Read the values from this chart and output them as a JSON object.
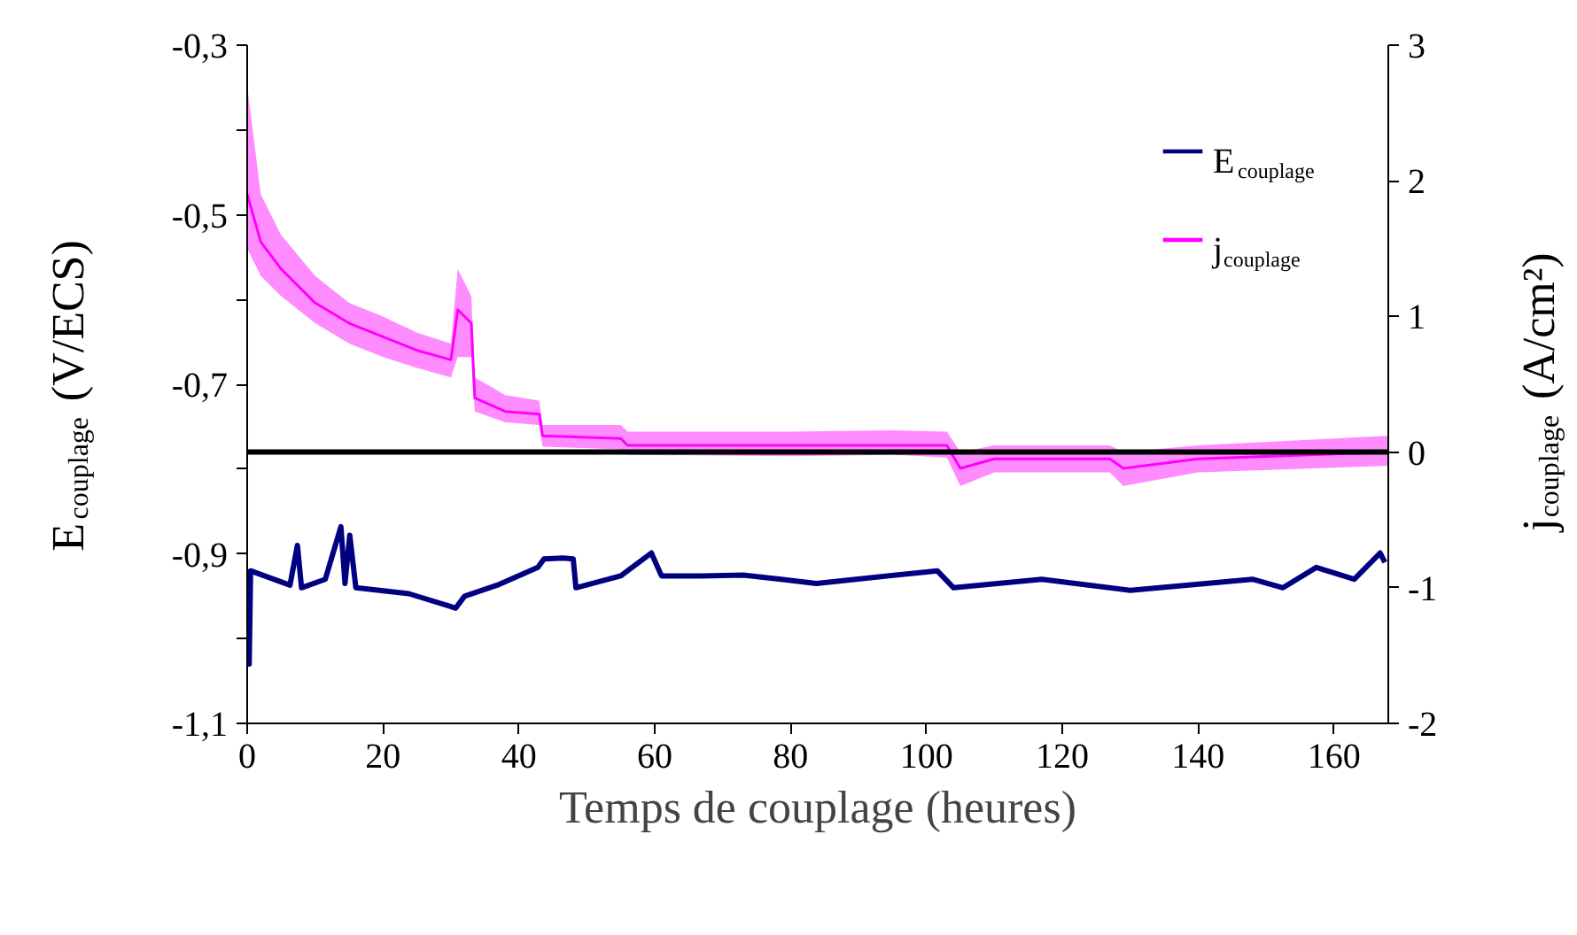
{
  "chart_data": {
    "type": "line",
    "xlabel": "Temps de couplage (heures)",
    "ylabel": "E$_{couplage}$ (V/ECS)",
    "y2label": "j$_{couplage}$ (A/cm²)",
    "xlim": [
      0,
      168
    ],
    "xticks": [
      0,
      20,
      40,
      60,
      80,
      100,
      120,
      140,
      160
    ],
    "ylim": [
      -1.1,
      -0.3
    ],
    "yticks": [
      {
        "value": -0.3,
        "label": "-0,3"
      },
      {
        "value": -0.4,
        "label": null
      },
      {
        "value": -0.5,
        "label": "-0,5"
      },
      {
        "value": -0.6,
        "label": null
      },
      {
        "value": -0.7,
        "label": "-0,7"
      },
      {
        "value": -0.8,
        "label": null
      },
      {
        "value": -0.9,
        "label": "-0,9"
      },
      {
        "value": -1.0,
        "label": null
      },
      {
        "value": -1.1,
        "label": "-1,1"
      }
    ],
    "y2lim": [
      -2,
      3
    ],
    "y2ticks": [
      3,
      2,
      1,
      0,
      -1,
      -2
    ],
    "legend": "top right",
    "grid": false,
    "marker": "none",
    "line_style": "solid",
    "ref_lines": [
      {
        "axis": "y2",
        "value": 0,
        "label": null,
        "color": "#000000"
      }
    ],
    "series": [
      {
        "name": "E$_{couplage}$",
        "color": "#000080",
        "axis": "y",
        "x": [
          0,
          0.3,
          0.5,
          6.3,
          7.4,
          8,
          11.5,
          13.8,
          14.4,
          15.1,
          16,
          23.8,
          30.7,
          32,
          36.8,
          42.8,
          43.7,
          46.5,
          48,
          48.4,
          55,
          59.5,
          61,
          67,
          73,
          78.6,
          83.8,
          101.6,
          104,
          117,
          130,
          148,
          152.5,
          157.4,
          163,
          166.8,
          167.5
        ],
        "values": [
          -0.93,
          -1.03,
          -0.92,
          -0.937,
          -0.89,
          -0.94,
          -0.93,
          -0.868,
          -0.935,
          -0.878,
          -0.94,
          -0.947,
          -0.964,
          -0.95,
          -0.937,
          -0.916,
          -0.906,
          -0.905,
          -0.906,
          -0.94,
          -0.926,
          -0.899,
          -0.926,
          -0.926,
          -0.925,
          -0.93,
          -0.935,
          -0.92,
          -0.94,
          -0.93,
          -0.943,
          -0.93,
          -0.94,
          -0.916,
          -0.93,
          -0.899,
          -0.91
        ]
      },
      {
        "name": "j$_{couplage}$",
        "color": "#ff00ff",
        "axis": "y2",
        "x": [
          0,
          2,
          5,
          10,
          15,
          20,
          25,
          30,
          31,
          33,
          33.5,
          38,
          43,
          43.5,
          55,
          56,
          80,
          95,
          103,
          105,
          110,
          127,
          129,
          140,
          168
        ],
        "values": [
          1.9,
          1.55,
          1.35,
          1.1,
          0.95,
          0.85,
          0.75,
          0.68,
          1.05,
          0.95,
          0.4,
          0.3,
          0.28,
          0.12,
          0.1,
          0.05,
          0.05,
          0.05,
          0.05,
          -0.12,
          -0.05,
          -0.05,
          -0.12,
          -0.05,
          0.0
        ],
        "lower": [
          1.5,
          1.3,
          1.15,
          0.95,
          0.8,
          0.7,
          0.62,
          0.55,
          0.7,
          0.7,
          0.3,
          0.22,
          0.2,
          0.04,
          0.02,
          -0.02,
          -0.03,
          -0.02,
          -0.04,
          -0.25,
          -0.15,
          -0.15,
          -0.25,
          -0.15,
          -0.1
        ],
        "upper": [
          2.7,
          1.9,
          1.6,
          1.3,
          1.1,
          1.0,
          0.88,
          0.8,
          1.35,
          1.15,
          0.55,
          0.42,
          0.38,
          0.2,
          0.2,
          0.15,
          0.15,
          0.16,
          0.15,
          0.0,
          0.05,
          0.05,
          0.0,
          0.05,
          0.12
        ]
      }
    ]
  }
}
